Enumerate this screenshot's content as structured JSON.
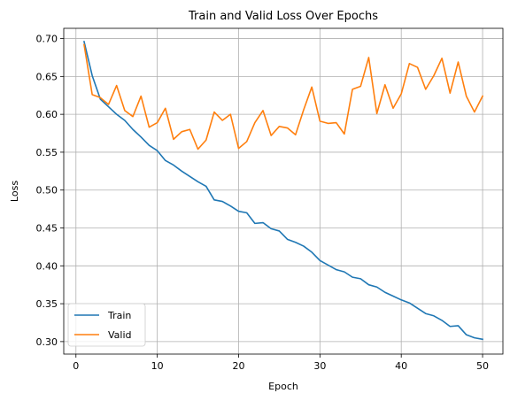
{
  "chart_data": {
    "type": "line",
    "title": "Train and Valid Loss Over Epochs",
    "xlabel": "Epoch",
    "ylabel": "Loss",
    "xlim": [
      -1.5,
      52.5
    ],
    "ylim": [
      0.2835,
      0.7135
    ],
    "x_ticks": [
      0,
      10,
      20,
      30,
      40,
      50
    ],
    "y_ticks": [
      0.3,
      0.35,
      0.4,
      0.45,
      0.5,
      0.55,
      0.6,
      0.65,
      0.7
    ],
    "grid": true,
    "legend_position": "lower-left",
    "x": [
      1,
      2,
      3,
      4,
      5,
      6,
      7,
      8,
      9,
      10,
      11,
      12,
      13,
      14,
      15,
      16,
      17,
      18,
      19,
      20,
      21,
      22,
      23,
      24,
      25,
      26,
      27,
      28,
      29,
      30,
      31,
      32,
      33,
      34,
      35,
      36,
      37,
      38,
      39,
      40,
      41,
      42,
      43,
      44,
      45,
      46,
      47,
      48,
      49,
      50
    ],
    "series": [
      {
        "name": "Train",
        "color": "#1f77b4",
        "values": [
          0.696,
          0.651,
          0.62,
          0.61,
          0.6,
          0.592,
          0.58,
          0.57,
          0.559,
          0.552,
          0.539,
          0.533,
          0.525,
          0.518,
          0.511,
          0.505,
          0.487,
          0.485,
          0.479,
          0.472,
          0.47,
          0.456,
          0.457,
          0.449,
          0.446,
          0.435,
          0.431,
          0.426,
          0.418,
          0.407,
          0.401,
          0.395,
          0.392,
          0.385,
          0.383,
          0.375,
          0.372,
          0.365,
          0.36,
          0.355,
          0.351,
          0.344,
          0.337,
          0.334,
          0.328,
          0.32,
          0.321,
          0.309,
          0.305,
          0.303
        ]
      },
      {
        "name": "Valid",
        "color": "#ff7f0e",
        "values": [
          0.692,
          0.626,
          0.622,
          0.613,
          0.638,
          0.605,
          0.597,
          0.624,
          0.583,
          0.589,
          0.608,
          0.567,
          0.577,
          0.58,
          0.554,
          0.566,
          0.603,
          0.592,
          0.6,
          0.555,
          0.564,
          0.589,
          0.605,
          0.572,
          0.584,
          0.582,
          0.573,
          0.606,
          0.636,
          0.591,
          0.588,
          0.589,
          0.574,
          0.633,
          0.637,
          0.675,
          0.601,
          0.639,
          0.608,
          0.627,
          0.667,
          0.662,
          0.633,
          0.651,
          0.674,
          0.628,
          0.669,
          0.624,
          0.603,
          0.624
        ]
      }
    ]
  }
}
